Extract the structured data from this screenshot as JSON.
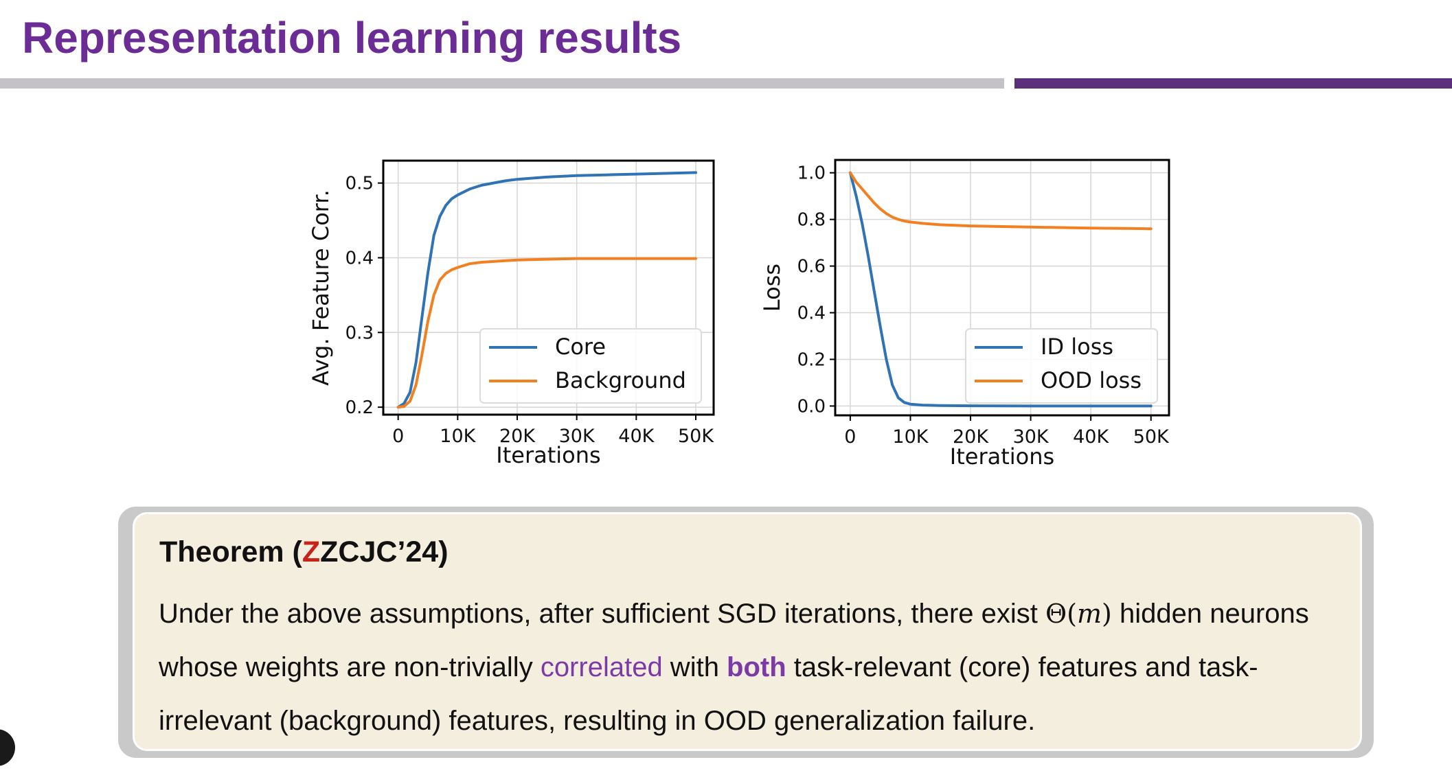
{
  "slide": {
    "title": "Representation learning results",
    "title_color": "#6b2d95",
    "rule_accent_color": "#5c2f7d",
    "rule_base_color": "#c4c2c6"
  },
  "theorem": {
    "heading_prefix": "Theorem (",
    "heading_red_letter": "Z",
    "heading_rest": "ZCJC’24)",
    "heading_red_color": "#c8221b",
    "body_1": "Under the above assumptions, after sufficient SGD iterations, there exist ",
    "math_theta": "Θ(",
    "math_m": "m",
    "math_close": ")",
    "body_2": " hidden neurons whose weights are non-trivially ",
    "highlight_correlated": "correlated",
    "body_3": " with ",
    "highlight_both": "both",
    "body_4": " task-relevant (core) features and task-irrelevant (background) features, resulting in OOD generalization failure.",
    "highlight_color": "#7b3aa6"
  },
  "chart_data": [
    {
      "type": "line",
      "xlabel": "Iterations",
      "ylabel": "Avg. Feature Corr.",
      "xlim": [
        -2500,
        53000
      ],
      "ylim": [
        0.19,
        0.53
      ],
      "x_ticks": [
        0,
        10000,
        20000,
        30000,
        40000,
        50000
      ],
      "x_tick_labels": [
        "0",
        "10K",
        "20K",
        "30K",
        "40K",
        "50K"
      ],
      "y_ticks": [
        0.2,
        0.3,
        0.4,
        0.5
      ],
      "y_tick_labels": [
        "0.2",
        "0.3",
        "0.4",
        "0.5"
      ],
      "grid": true,
      "legend_position": "lower-right",
      "series": [
        {
          "name": "Core",
          "color": "#2f73b5",
          "x": [
            0,
            1000,
            2000,
            3000,
            4000,
            5000,
            6000,
            7000,
            8000,
            9000,
            10000,
            12000,
            14000,
            16000,
            18000,
            20000,
            25000,
            30000,
            35000,
            40000,
            45000,
            50000
          ],
          "y": [
            0.2,
            0.205,
            0.22,
            0.26,
            0.32,
            0.38,
            0.43,
            0.455,
            0.47,
            0.479,
            0.484,
            0.492,
            0.497,
            0.5,
            0.503,
            0.505,
            0.508,
            0.51,
            0.511,
            0.512,
            0.513,
            0.514
          ]
        },
        {
          "name": "Background",
          "color": "#f28021",
          "x": [
            0,
            1000,
            2000,
            3000,
            4000,
            5000,
            6000,
            7000,
            8000,
            9000,
            10000,
            12000,
            14000,
            16000,
            18000,
            20000,
            25000,
            30000,
            35000,
            40000,
            45000,
            50000
          ],
          "y": [
            0.2,
            0.201,
            0.208,
            0.23,
            0.27,
            0.315,
            0.35,
            0.37,
            0.379,
            0.384,
            0.387,
            0.392,
            0.394,
            0.395,
            0.396,
            0.397,
            0.398,
            0.399,
            0.399,
            0.399,
            0.399,
            0.399
          ]
        }
      ]
    },
    {
      "type": "line",
      "xlabel": "Iterations",
      "ylabel": "Loss",
      "xlim": [
        -2500,
        53000
      ],
      "ylim": [
        -0.04,
        1.055
      ],
      "x_ticks": [
        0,
        10000,
        20000,
        30000,
        40000,
        50000
      ],
      "x_tick_labels": [
        "0",
        "10K",
        "20K",
        "30K",
        "40K",
        "50K"
      ],
      "y_ticks": [
        0.0,
        0.2,
        0.4,
        0.6,
        0.8,
        1.0
      ],
      "y_tick_labels": [
        "0.0",
        "0.2",
        "0.4",
        "0.6",
        "0.8",
        "1.0"
      ],
      "grid": true,
      "legend_position": "lower-right",
      "series": [
        {
          "name": "ID loss",
          "color": "#2f73b5",
          "x": [
            0,
            1000,
            2000,
            3000,
            4000,
            5000,
            6000,
            7000,
            8000,
            9000,
            10000,
            12000,
            15000,
            20000,
            30000,
            40000,
            50000
          ],
          "y": [
            1.0,
            0.9,
            0.78,
            0.64,
            0.49,
            0.34,
            0.2,
            0.09,
            0.035,
            0.015,
            0.008,
            0.004,
            0.002,
            0.001,
            0.0,
            0.0,
            0.0
          ]
        },
        {
          "name": "OOD loss",
          "color": "#f28021",
          "x": [
            0,
            1000,
            2000,
            3000,
            4000,
            5000,
            6000,
            7000,
            8000,
            9000,
            10000,
            12000,
            15000,
            20000,
            30000,
            40000,
            50000
          ],
          "y": [
            1.0,
            0.96,
            0.93,
            0.9,
            0.87,
            0.845,
            0.825,
            0.81,
            0.8,
            0.793,
            0.789,
            0.783,
            0.777,
            0.772,
            0.767,
            0.763,
            0.76
          ]
        }
      ]
    }
  ]
}
